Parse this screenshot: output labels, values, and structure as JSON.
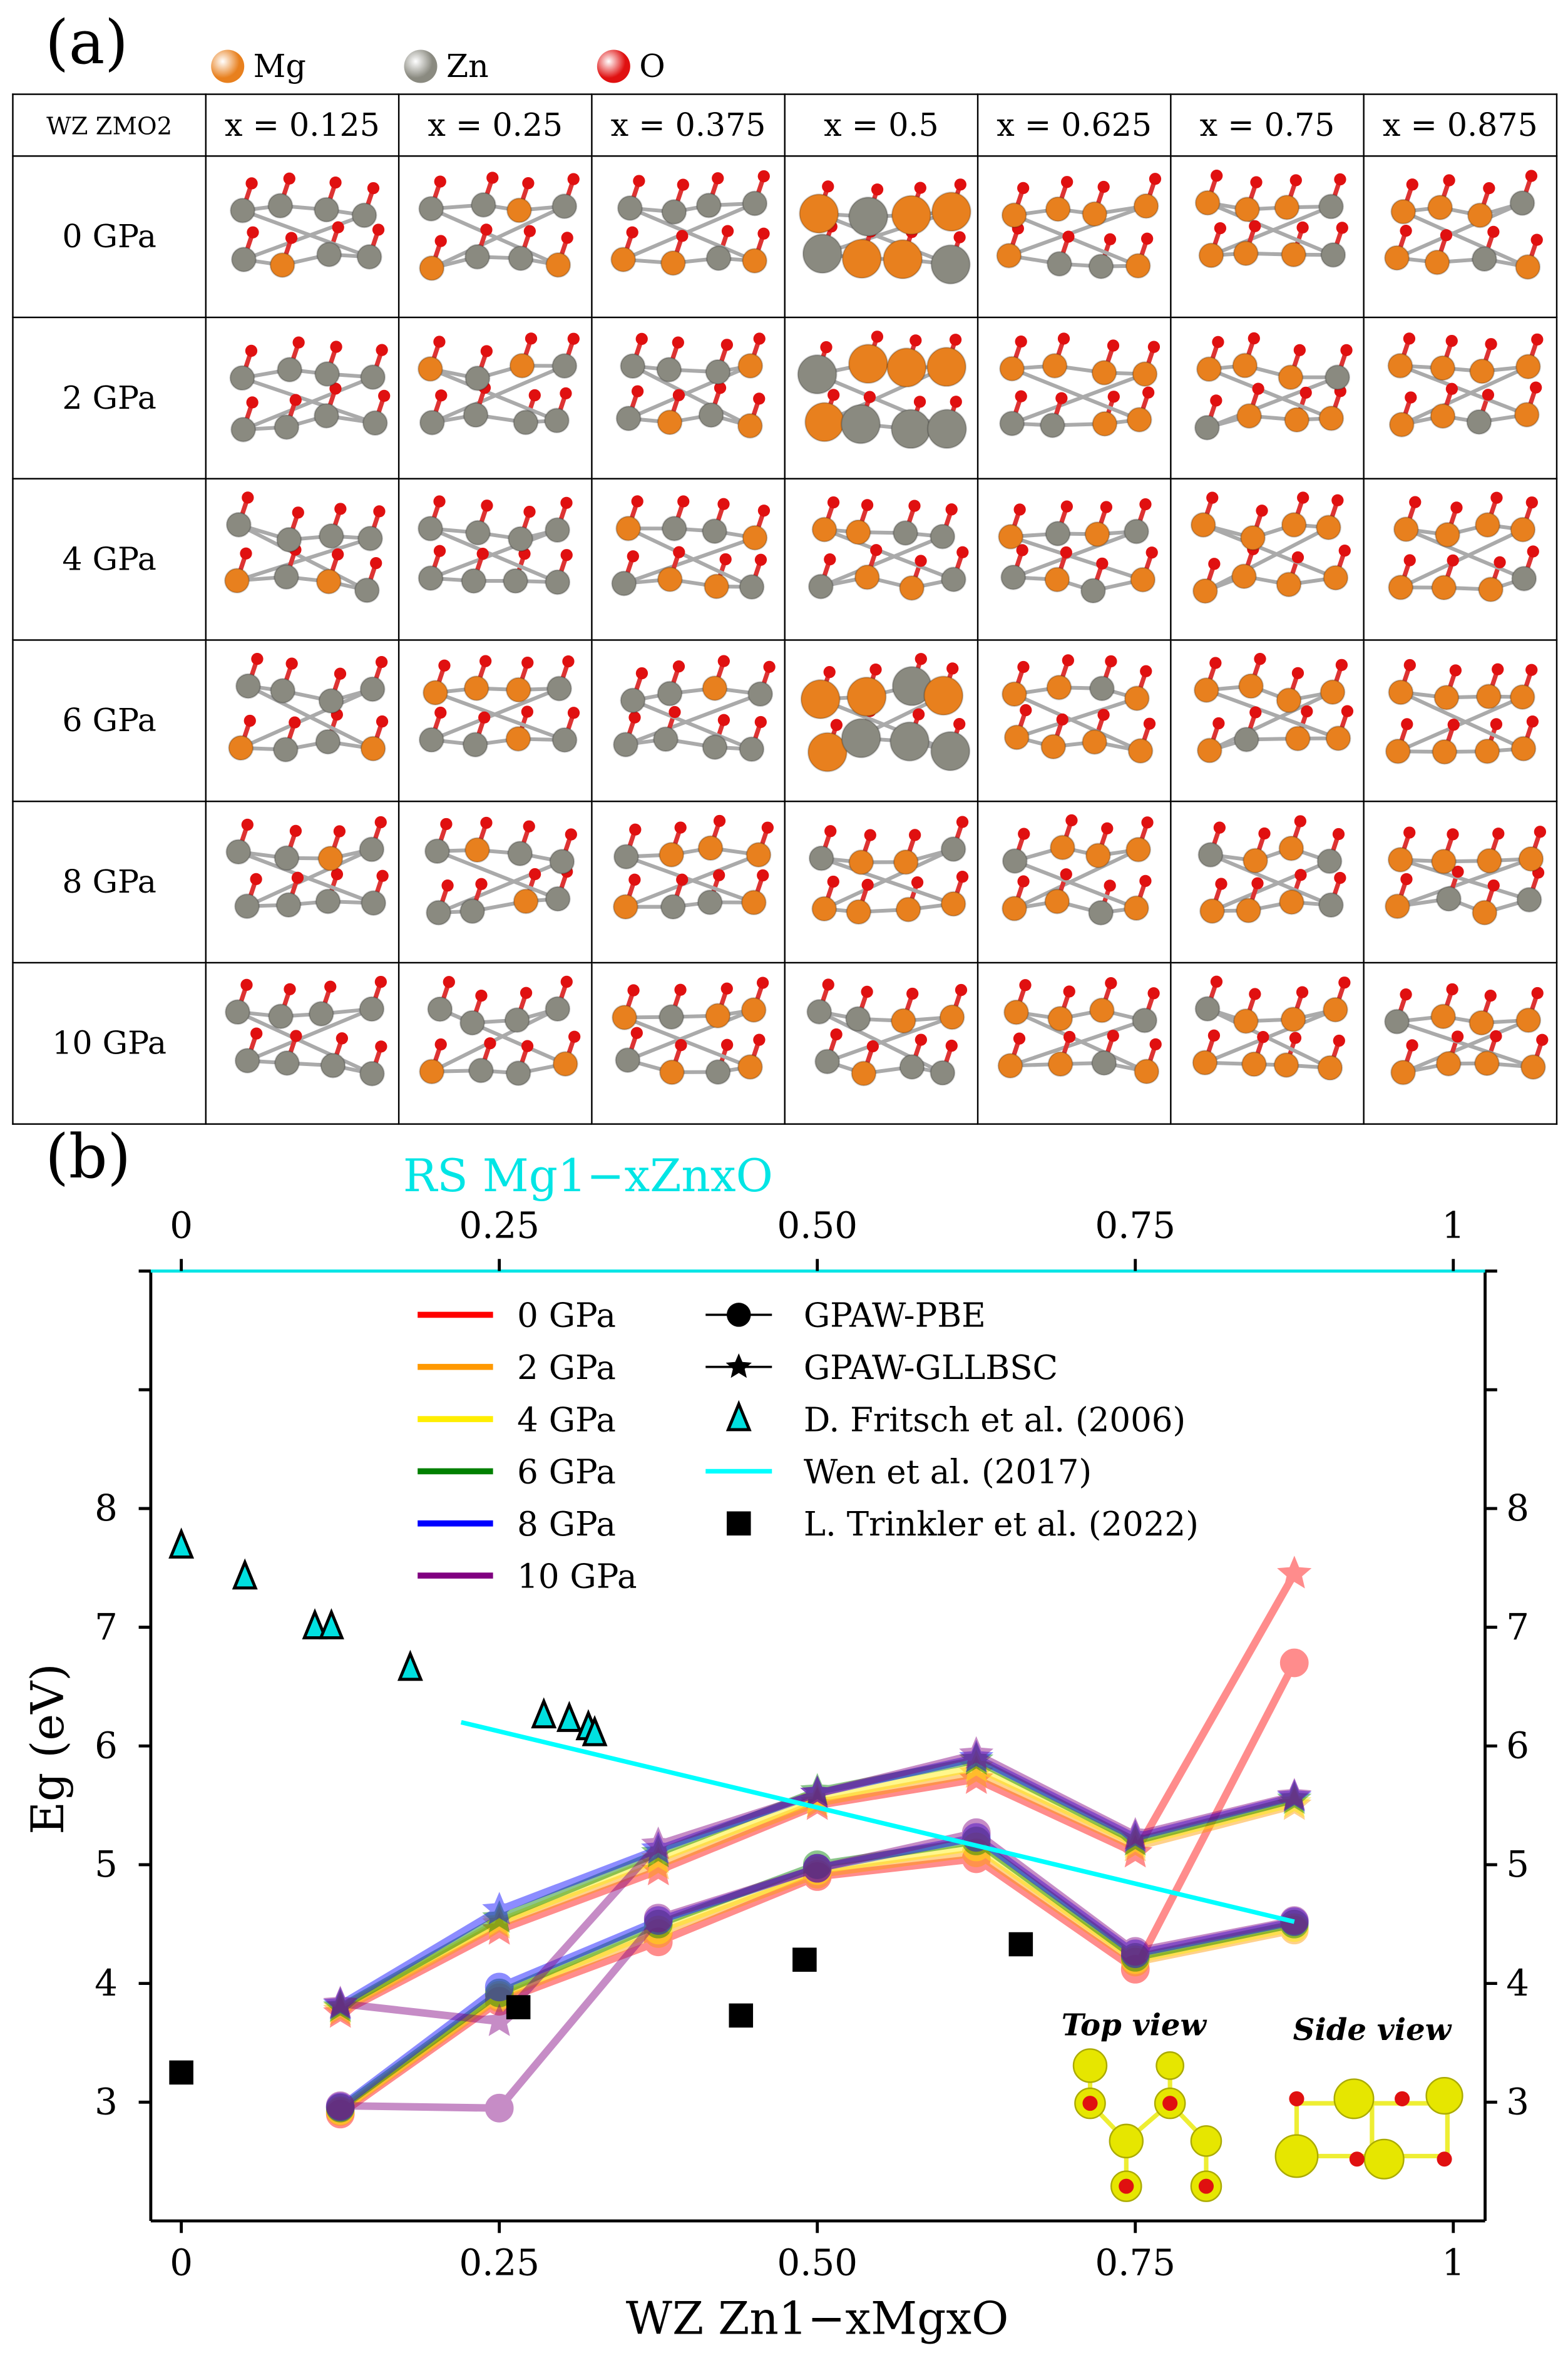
{
  "panel_a": {
    "label": "(a)",
    "atom_legend": [
      {
        "name": "Mg",
        "color": "#e8801e"
      },
      {
        "name": "Zn",
        "color": "#8a8a80"
      },
      {
        "name": "O",
        "color": "#e01010"
      }
    ],
    "table": {
      "corner": "WZ ZMO2",
      "columns": [
        "x = 0.125",
        "x = 0.25",
        "x = 0.375",
        "x = 0.5",
        "x = 0.625",
        "x = 0.75",
        "x = 0.875"
      ],
      "rows": [
        "0 GPa",
        "2 GPa",
        "4 GPa",
        "6 GPa",
        "8 GPa",
        "10 GPa"
      ]
    }
  },
  "panel_b": {
    "label": "(b)",
    "inset_top_label": "Top view",
    "inset_side_label": "Side view"
  },
  "chart_data": {
    "type": "line",
    "xlabel": "WZ Zn1−xMgxO",
    "top_xlabel": "RS Mg1−xZnxO",
    "ylabel": "Eg (eV)",
    "xlim": [
      -0.024,
      1.025
    ],
    "ylim": [
      2,
      10
    ],
    "x_ticks": [
      "0",
      "0.25",
      "0.50",
      "0.75",
      "1"
    ],
    "top_x_ticks": [
      "0",
      "0.25",
      "0.50",
      "0.75",
      "1"
    ],
    "y_ticks": [
      "3",
      "4",
      "5",
      "6",
      "7",
      "8"
    ],
    "colors": {
      "top_axis": "#00e5e5",
      "wen": "#00ffff",
      "fritsch": "#00e0e0",
      "trinkler": "#000000"
    },
    "x": [
      0.125,
      0.25,
      0.375,
      0.5,
      0.625,
      0.75,
      0.875
    ],
    "pressures": [
      {
        "name": "0 GPa",
        "color": "#ff0000"
      },
      {
        "name": "2 GPa",
        "color": "#ff9900"
      },
      {
        "name": "4 GPa",
        "color": "#ffee00"
      },
      {
        "name": "6 GPa",
        "color": "#008000"
      },
      {
        "name": "8 GPa",
        "color": "#0000ff"
      },
      {
        "name": "10 GPa",
        "color": "#800080"
      }
    ],
    "methods": [
      {
        "name": "GPAW-PBE",
        "marker": "circle",
        "values": [
          [
            2.9,
            3.85,
            4.35,
            4.9,
            5.05,
            4.12,
            6.7
          ],
          [
            2.92,
            3.88,
            4.42,
            4.92,
            5.1,
            4.18,
            4.45
          ],
          [
            2.93,
            3.9,
            4.45,
            4.95,
            5.15,
            4.2,
            4.47
          ],
          [
            2.95,
            3.92,
            4.5,
            5.0,
            5.2,
            4.22,
            4.5
          ],
          [
            2.96,
            3.97,
            4.53,
            4.97,
            5.23,
            4.25,
            4.52
          ],
          [
            2.97,
            2.95,
            4.55,
            4.97,
            5.27,
            4.27,
            4.53
          ]
        ]
      },
      {
        "name": "GPAW-GLLBSC",
        "marker": "star",
        "values": [
          [
            3.75,
            4.45,
            4.95,
            5.5,
            5.72,
            5.1,
            7.45
          ],
          [
            3.77,
            4.5,
            5.0,
            5.52,
            5.77,
            5.15,
            5.5
          ],
          [
            3.79,
            4.52,
            5.05,
            5.55,
            5.82,
            5.18,
            5.52
          ],
          [
            3.8,
            4.55,
            5.1,
            5.62,
            5.88,
            5.2,
            5.55
          ],
          [
            3.82,
            4.62,
            5.13,
            5.6,
            5.9,
            5.23,
            5.57
          ],
          [
            3.83,
            3.68,
            5.17,
            5.6,
            5.93,
            5.25,
            5.58
          ]
        ]
      }
    ],
    "references": [
      {
        "name": "D. Fritsch et al. (2006)",
        "marker": "triangle",
        "x": [
          0,
          0.05,
          0.105,
          0.118,
          0.18,
          0.285,
          0.305,
          0.32,
          0.325
        ],
        "y": [
          7.68,
          7.42,
          7.0,
          7.0,
          6.65,
          6.25,
          6.22,
          6.15,
          6.1
        ]
      },
      {
        "name": "Wen et al. (2017)",
        "marker": "line",
        "x": [
          0.22,
          0.875
        ],
        "y": [
          6.2,
          4.52
        ]
      },
      {
        "name": "L. Trinkler et al. (2022)",
        "marker": "square",
        "x": [
          0,
          0.265,
          0.44,
          0.49,
          0.66
        ],
        "y": [
          3.25,
          3.8,
          3.73,
          4.2,
          4.33
        ]
      }
    ]
  }
}
